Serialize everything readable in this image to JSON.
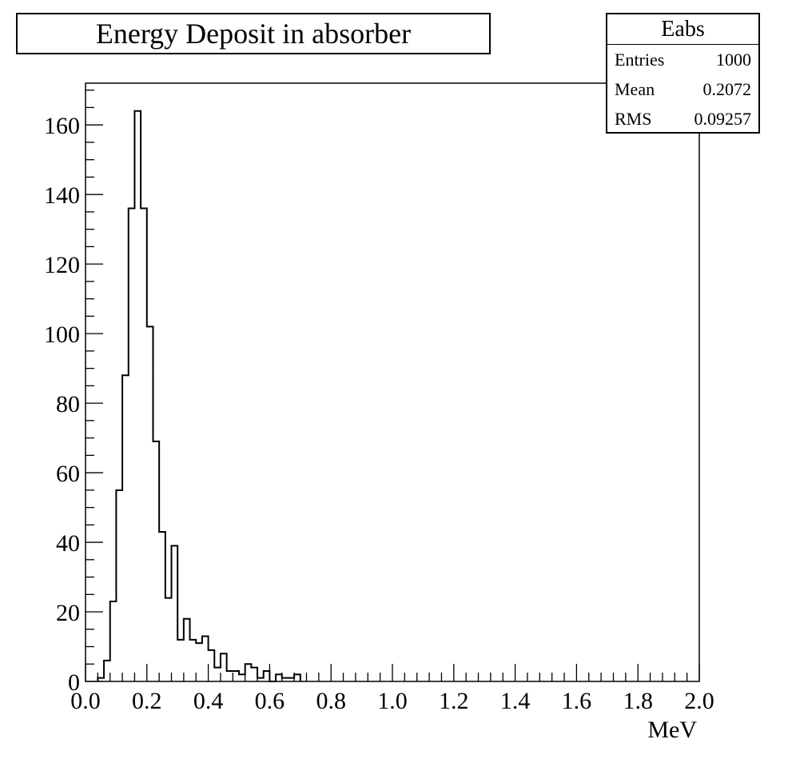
{
  "chart_data": {
    "type": "bar",
    "title": "Energy Deposit in absorber",
    "xlabel": "MeV",
    "ylabel": "",
    "xlim": [
      0.0,
      2.0
    ],
    "ylim": [
      0,
      172
    ],
    "bin_width": 0.02,
    "x_tick_labels": [
      "0.0",
      "0.2",
      "0.4",
      "0.6",
      "0.8",
      "1.0",
      "1.2",
      "1.4",
      "1.6",
      "1.8",
      "2.0"
    ],
    "y_tick_labels": [
      "0",
      "20",
      "40",
      "60",
      "80",
      "100",
      "120",
      "140",
      "160"
    ],
    "bin_low_edges": [
      0.04,
      0.06,
      0.08,
      0.1,
      0.12,
      0.14,
      0.16,
      0.18,
      0.2,
      0.22,
      0.24,
      0.26,
      0.28,
      0.3,
      0.32,
      0.34,
      0.36,
      0.38,
      0.4,
      0.42,
      0.44,
      0.46,
      0.48,
      0.5,
      0.52,
      0.54,
      0.56,
      0.58,
      0.6,
      0.62,
      0.64,
      0.66,
      0.68
    ],
    "values": [
      1,
      6,
      23,
      55,
      88,
      136,
      164,
      136,
      102,
      69,
      43,
      24,
      39,
      12,
      18,
      12,
      11,
      13,
      9,
      4,
      8,
      3,
      3,
      2,
      5,
      4,
      1,
      3,
      0,
      2,
      1,
      1,
      2
    ],
    "grid": false,
    "legend": "none"
  },
  "stats": {
    "name": "Eabs",
    "rows": [
      {
        "label": "Entries",
        "value": "1000"
      },
      {
        "label": "Mean",
        "value": "0.2072"
      },
      {
        "label": "RMS",
        "value": "0.09257"
      }
    ]
  }
}
